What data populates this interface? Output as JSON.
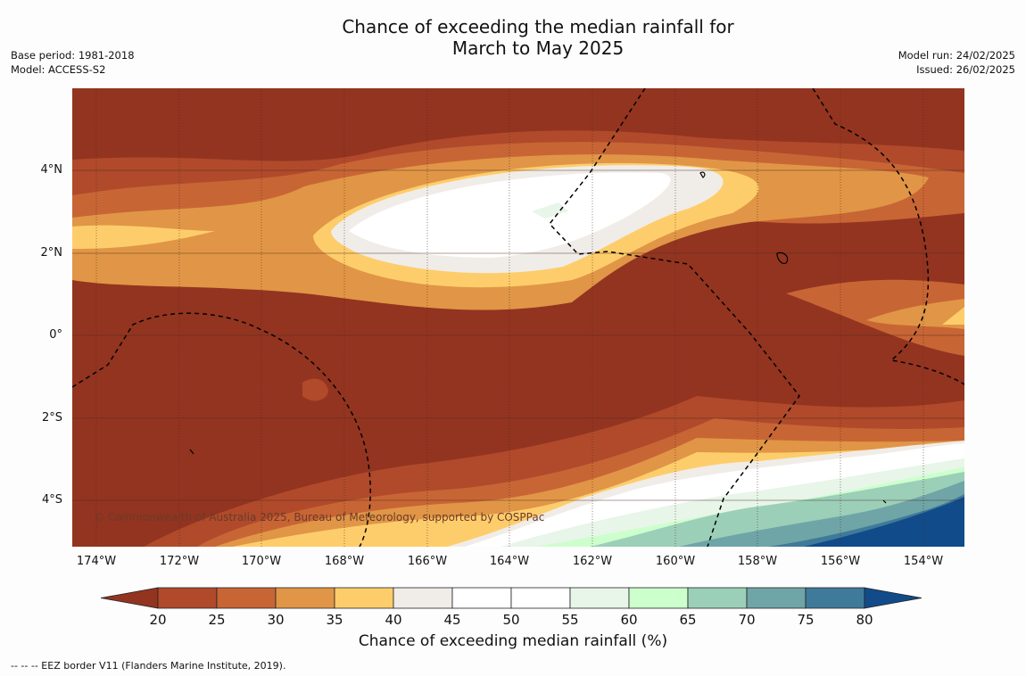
{
  "title": {
    "line1": "Chance of exceeding the median rainfall for",
    "line2": "March to May 2025"
  },
  "meta_left": {
    "base_period": "Base period: 1981-2018",
    "model": "Model: ACCESS-S2"
  },
  "meta_right": {
    "model_run": "Model run: 24/02/2025",
    "issued": "Issued: 26/02/2025"
  },
  "map": {
    "copyright": "© Commonwealth of Australia 2025, Bureau of Meteorology, supported by COSPPac",
    "x_ticks": [
      "174°W",
      "172°W",
      "170°W",
      "168°W",
      "166°W",
      "164°W",
      "162°W",
      "160°W",
      "158°W",
      "156°W",
      "154°W"
    ],
    "y_ticks": [
      "4°N",
      "2°N",
      "0°",
      "2°S",
      "4°S"
    ]
  },
  "colorbar": {
    "labels": [
      "20",
      "25",
      "30",
      "35",
      "40",
      "45",
      "50",
      "55",
      "60",
      "65",
      "70",
      "75",
      "80"
    ],
    "colors": [
      "#933420",
      "#b04a2b",
      "#c86535",
      "#e09646",
      "#fecd6b",
      "#f0ece8",
      "#ffffff",
      "#ffffff",
      "#e8f5e9",
      "#ccffcc",
      "#9ccfb8",
      "#6fa5a7",
      "#3f7a9a",
      "#114b89"
    ],
    "title": "Chance of exceeding median rainfall (%)"
  },
  "footnote": "--  --  -- EEZ border V11 (Flanders Marine Institute, 2019)."
}
